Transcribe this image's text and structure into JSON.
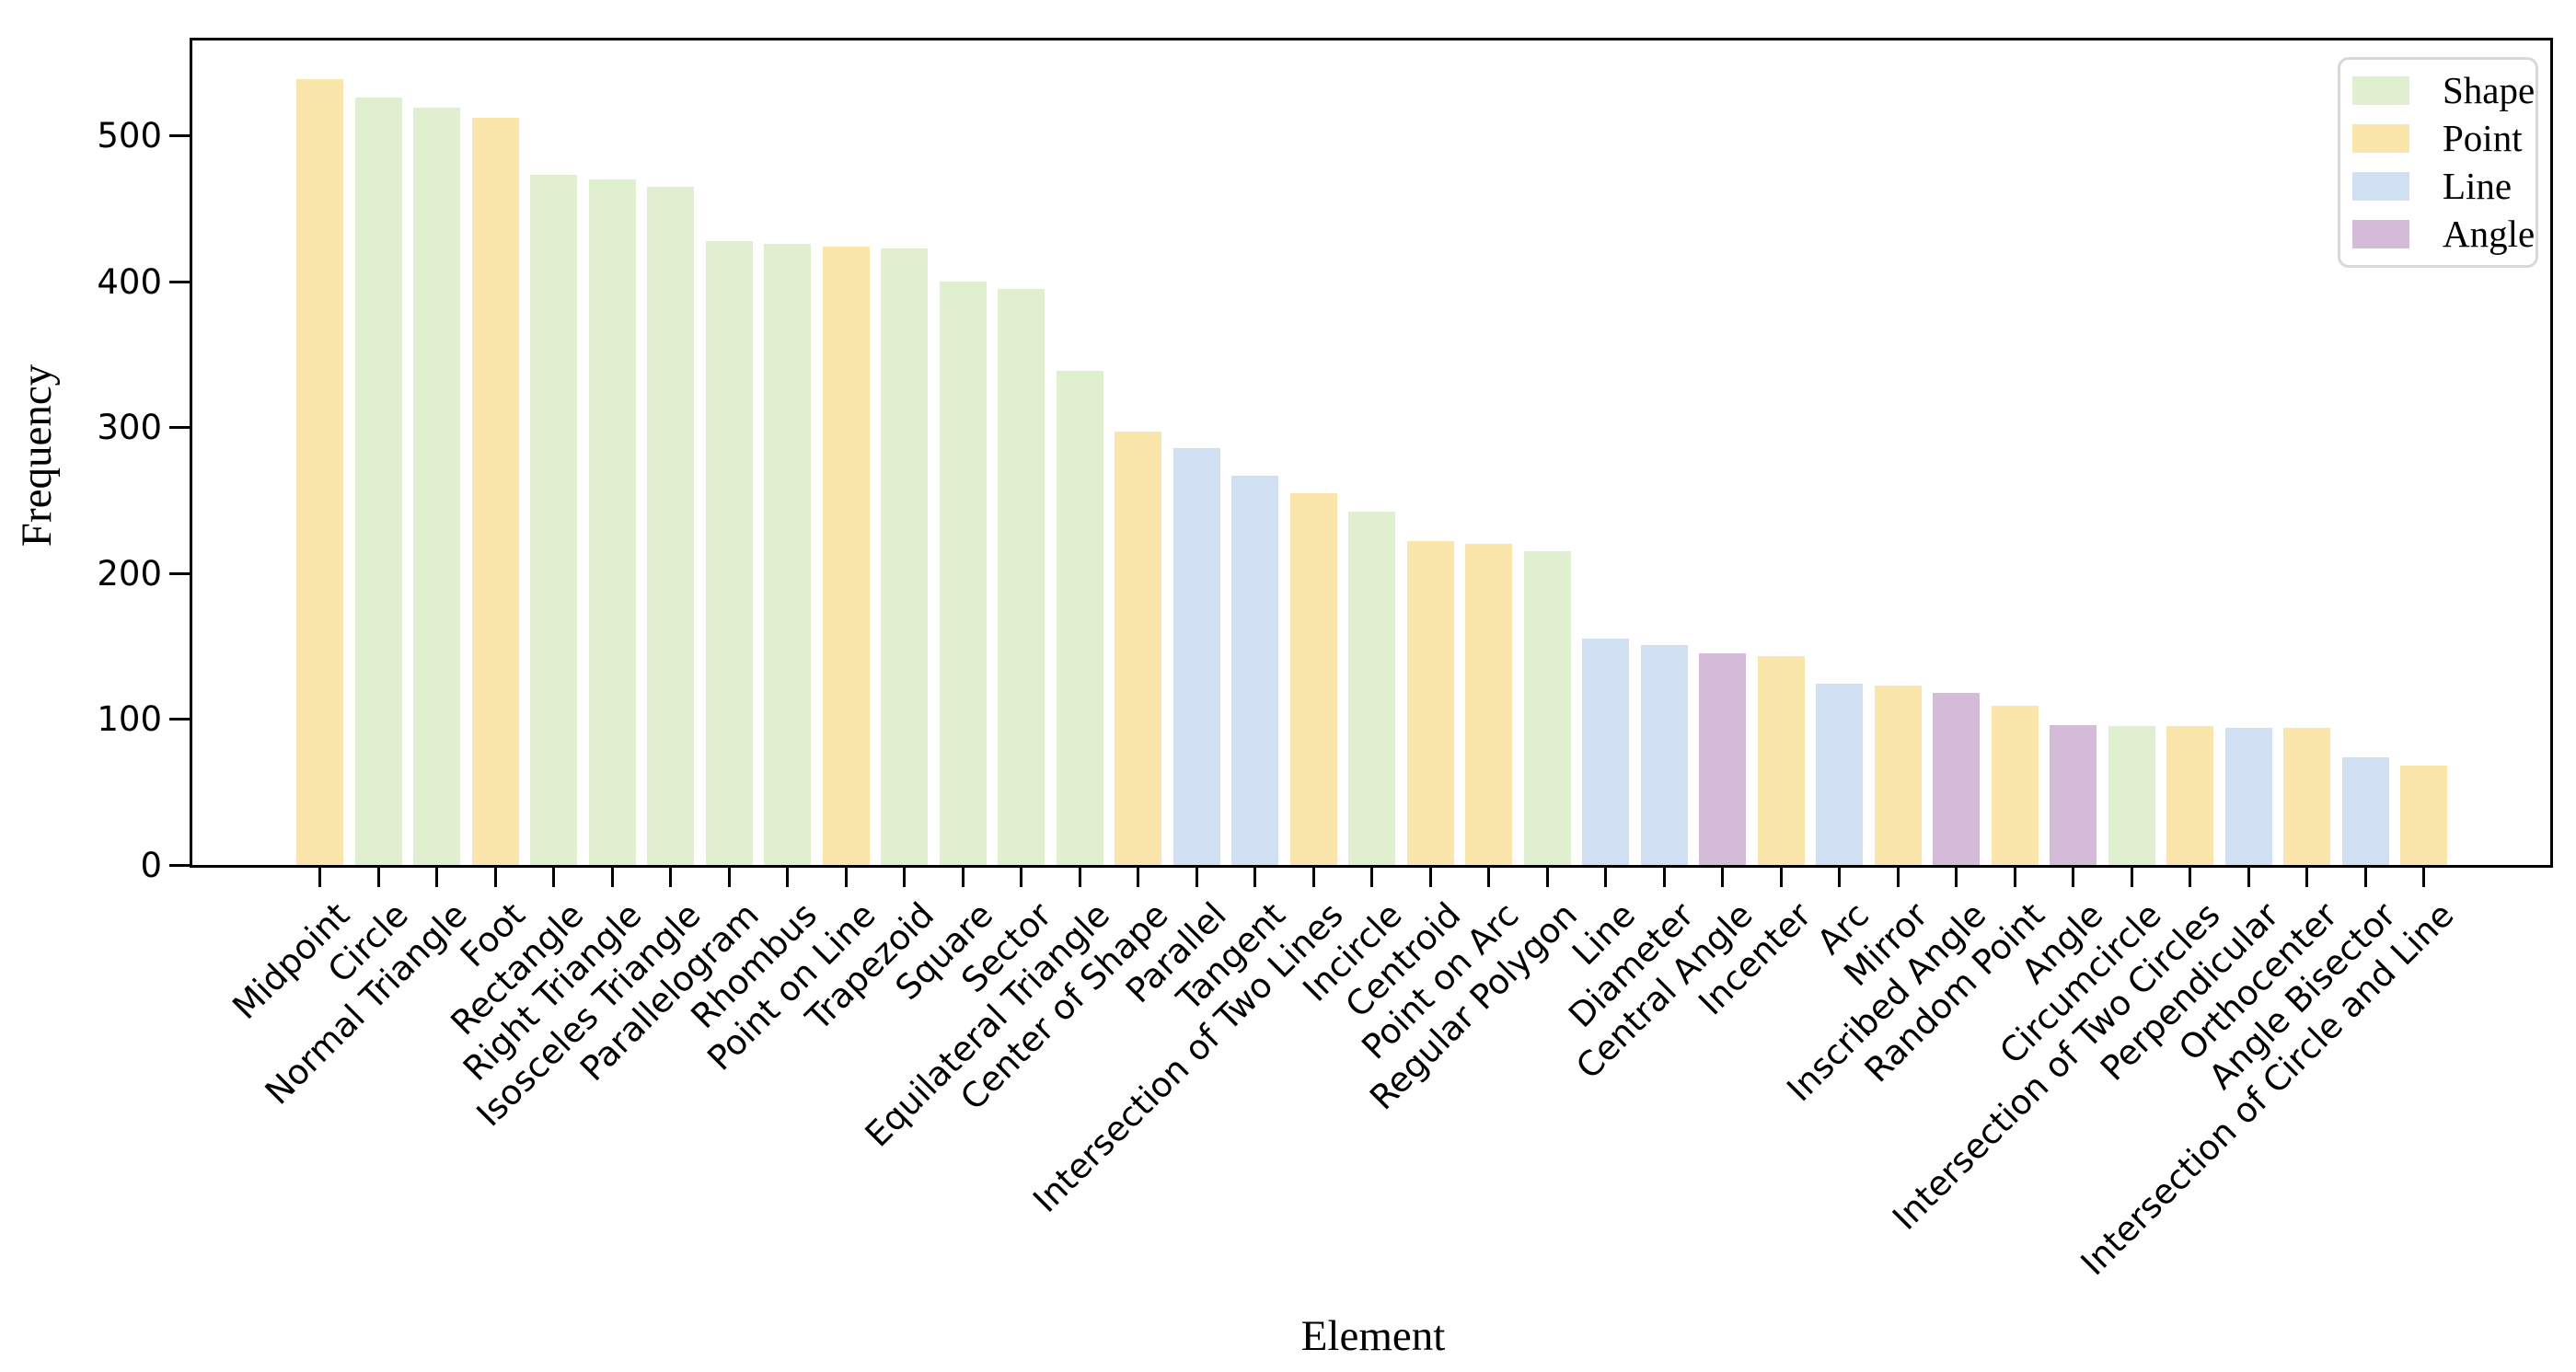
{
  "chart_data": {
    "type": "bar",
    "title": "",
    "xlabel": "Element",
    "ylabel": "Frequency",
    "ylim": [
      0,
      567
    ],
    "yticks": [
      0,
      100,
      200,
      300,
      400,
      500
    ],
    "grid": false,
    "legend_position": "upper right",
    "legend_entries": [
      {
        "label": "Shape",
        "color": "#e1efd1"
      },
      {
        "label": "Point",
        "color": "#fae6ab"
      },
      {
        "label": "Line",
        "color": "#d1dff3"
      },
      {
        "label": "Angle",
        "color": "#d4bbd8"
      }
    ],
    "categories": [
      "Midpoint",
      "Circle",
      "Normal Triangle",
      "Foot",
      "Rectangle",
      "Right Triangle",
      "Isosceles Triangle",
      "Parallelogram",
      "Rhombus",
      "Point on Line",
      "Trapezoid",
      "Square",
      "Sector",
      "Equilateral Triangle",
      "Center of Shape",
      "Parallel",
      "Tangent",
      "Intersection of Two Lines",
      "Incircle",
      "Centroid",
      "Point on Arc",
      "Regular Polygon",
      "Line",
      "Diameter",
      "Central Angle",
      "Incenter",
      "Arc",
      "Mirror",
      "Inscribed Angle",
      "Random Point",
      "Angle",
      "Circumcircle",
      "Intersection of Two Circles",
      "Perpendicular",
      "Orthocenter",
      "Angle Bisector",
      "Intersection of Circle and Line"
    ],
    "values": [
      539,
      526,
      519,
      512,
      473,
      470,
      465,
      428,
      426,
      424,
      423,
      400,
      395,
      339,
      297,
      286,
      267,
      255,
      242,
      222,
      220,
      215,
      155,
      151,
      145,
      143,
      124,
      123,
      118,
      109,
      96,
      95,
      95,
      94,
      94,
      74,
      68
    ],
    "bar_groups": [
      "Point",
      "Shape",
      "Shape",
      "Point",
      "Shape",
      "Shape",
      "Shape",
      "Shape",
      "Shape",
      "Point",
      "Shape",
      "Shape",
      "Shape",
      "Shape",
      "Point",
      "Line",
      "Line",
      "Point",
      "Shape",
      "Point",
      "Point",
      "Shape",
      "Line",
      "Line",
      "Angle",
      "Point",
      "Line",
      "Point",
      "Angle",
      "Point",
      "Angle",
      "Shape",
      "Point",
      "Line",
      "Point",
      "Line",
      "Point"
    ]
  }
}
